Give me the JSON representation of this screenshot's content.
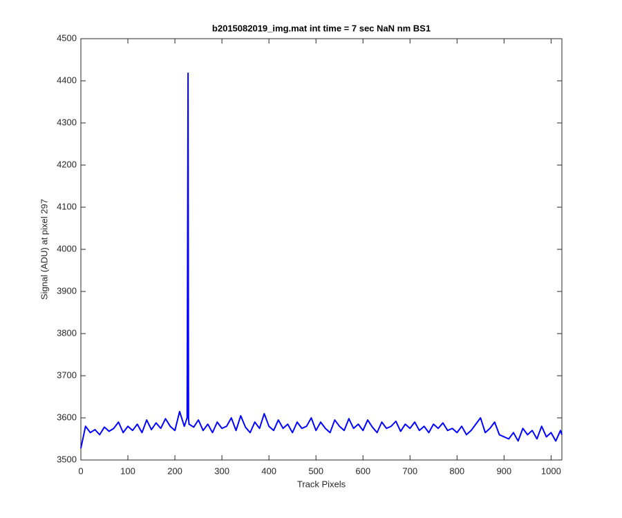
{
  "chart_data": {
    "type": "line",
    "title": "b2015082019_img.mat int time = 7 sec  NaN nm BS1",
    "x_label": "Track Pixels",
    "y_label": "Signal (ADU) at pixel 297",
    "x": [
      0,
      10,
      20,
      30,
      40,
      50,
      60,
      70,
      80,
      90,
      100,
      110,
      120,
      130,
      140,
      150,
      160,
      170,
      180,
      190,
      200,
      210,
      220,
      226,
      227,
      228,
      229,
      230,
      240,
      250,
      260,
      270,
      280,
      290,
      300,
      310,
      320,
      330,
      340,
      350,
      360,
      370,
      380,
      390,
      400,
      410,
      420,
      430,
      440,
      450,
      460,
      470,
      480,
      490,
      500,
      510,
      520,
      530,
      540,
      550,
      560,
      570,
      580,
      590,
      600,
      610,
      620,
      630,
      640,
      650,
      660,
      670,
      680,
      690,
      700,
      710,
      720,
      730,
      740,
      750,
      760,
      770,
      780,
      790,
      800,
      810,
      820,
      830,
      840,
      850,
      860,
      870,
      880,
      890,
      900,
      910,
      920,
      930,
      940,
      950,
      960,
      970,
      980,
      990,
      1000,
      1010,
      1020,
      1023
    ],
    "series": [
      {
        "color": "#0000ff",
        "values": [
          3528,
          3580,
          3565,
          3572,
          3560,
          3578,
          3568,
          3575,
          3590,
          3565,
          3580,
          3570,
          3585,
          3565,
          3595,
          3572,
          3588,
          3575,
          3598,
          3580,
          3570,
          3615,
          3580,
          3600,
          4000,
          4418,
          3600,
          3585,
          3578,
          3595,
          3570,
          3585,
          3565,
          3590,
          3575,
          3580,
          3600,
          3570,
          3605,
          3578,
          3565,
          3590,
          3575,
          3610,
          3580,
          3570,
          3595,
          3575,
          3585,
          3565,
          3590,
          3575,
          3580,
          3600,
          3570,
          3590,
          3575,
          3565,
          3595,
          3580,
          3570,
          3598,
          3575,
          3585,
          3570,
          3595,
          3578,
          3565,
          3590,
          3575,
          3580,
          3592,
          3568,
          3585,
          3575,
          3590,
          3570,
          3580,
          3565,
          3585,
          3575,
          3588,
          3570,
          3575,
          3565,
          3580,
          3560,
          3570,
          3585,
          3600,
          3565,
          3575,
          3590,
          3560,
          3555,
          3550,
          3565,
          3545,
          3575,
          3560,
          3570,
          3550,
          3580,
          3555,
          3565,
          3545,
          3570,
          3560
        ]
      }
    ],
    "xlim": [
      0,
      1023
    ],
    "ylim": [
      3500,
      4500
    ],
    "xticks": [
      0,
      100,
      200,
      300,
      400,
      500,
      600,
      700,
      800,
      900,
      1000
    ],
    "yticks": [
      3500,
      3600,
      3700,
      3800,
      3900,
      4000,
      4100,
      4200,
      4300,
      4400,
      4500
    ],
    "grid": false
  }
}
